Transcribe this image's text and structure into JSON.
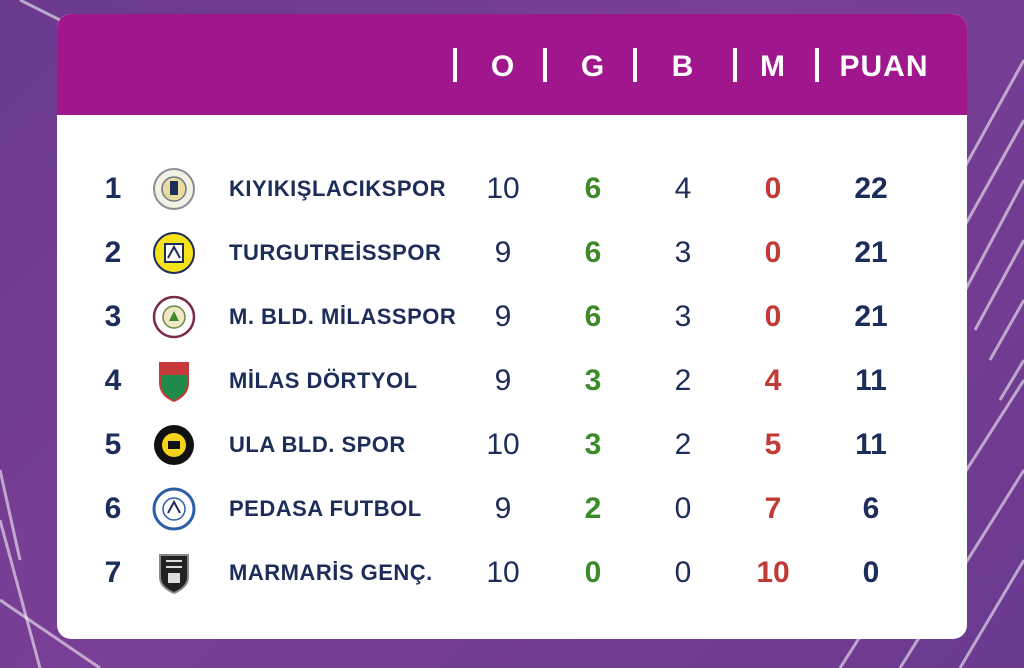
{
  "header": {
    "columns": [
      "O",
      "G",
      "B",
      "M",
      "PUAN"
    ]
  },
  "colors": {
    "header_bg": "#a0168c",
    "background": "#6f3c92",
    "text_dark": "#1d2d5a",
    "wins_green": "#3d8a2a",
    "losses_red": "#c23a36"
  },
  "standings": [
    {
      "rank": "1",
      "team": "KIYIKIŞLACIKSPOR",
      "logo": "kiyikislacikspor-crest-icon",
      "o": "10",
      "g": "6",
      "b": "4",
      "m": "0",
      "puan": "22"
    },
    {
      "rank": "2",
      "team": "TURGUTREİSSPOR",
      "logo": "turgutreisspor-crest-icon",
      "o": "9",
      "g": "6",
      "b": "3",
      "m": "0",
      "puan": "21"
    },
    {
      "rank": "3",
      "team": "M. BLD. MİLASSPOR",
      "logo": "milasspor-crest-icon",
      "o": "9",
      "g": "6",
      "b": "3",
      "m": "0",
      "puan": "21"
    },
    {
      "rank": "4",
      "team": "MİLAS DÖRTYOL",
      "logo": "milas-dortyol-shield-icon",
      "o": "9",
      "g": "3",
      "b": "2",
      "m": "4",
      "puan": "11"
    },
    {
      "rank": "5",
      "team": "ULA BLD. SPOR",
      "logo": "ula-bld-spor-crest-icon",
      "o": "10",
      "g": "3",
      "b": "2",
      "m": "5",
      "puan": "11"
    },
    {
      "rank": "6",
      "team": "PEDASA FUTBOL",
      "logo": "pedasa-spor-crest-icon",
      "o": "9",
      "g": "2",
      "b": "0",
      "m": "7",
      "puan": "6"
    },
    {
      "rank": "7",
      "team": "MARMARİS GENÇ.",
      "logo": "marmaris-genc-shield-icon",
      "o": "10",
      "g": "0",
      "b": "0",
      "m": "10",
      "puan": "0"
    }
  ]
}
